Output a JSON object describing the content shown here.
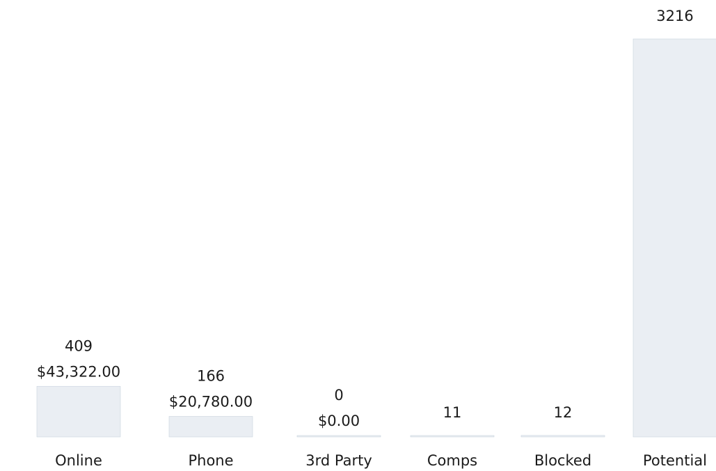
{
  "chart_data": {
    "type": "bar",
    "categories": [
      "Online",
      "Phone",
      "3rd Party",
      "Comps",
      "Blocked",
      "Potential"
    ],
    "values": [
      409,
      166,
      0,
      11,
      12,
      3216
    ],
    "amounts": [
      "$43,322.00",
      "$20,780.00",
      "$0.00",
      "",
      "",
      ""
    ],
    "value_labels": [
      "409",
      "166",
      "0",
      "11",
      "12",
      "3216"
    ],
    "ylim": [
      0,
      3216
    ],
    "grid": false,
    "legend": "none",
    "colors": {
      "bar": "#eaeef3",
      "bar_edge": "#c9d3de",
      "text": "#1a1a1a"
    }
  }
}
